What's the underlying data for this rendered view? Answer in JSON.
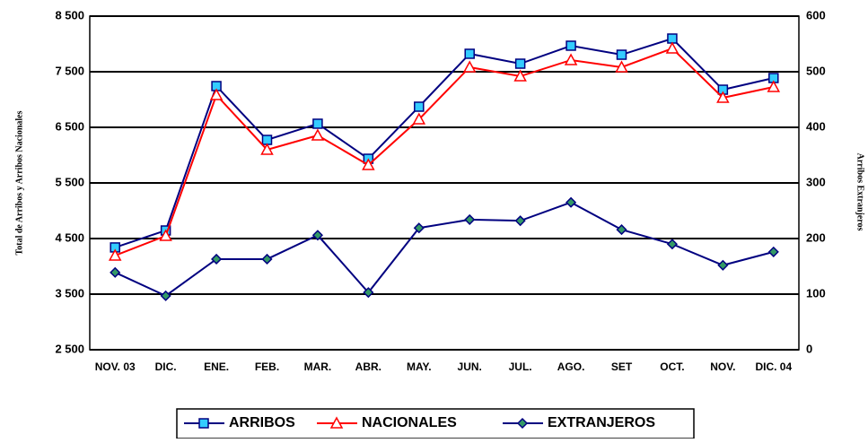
{
  "chart_data": {
    "type": "line",
    "categories": [
      "NOV. 03",
      "DIC.",
      "ENE.",
      "FEB.",
      "MAR.",
      "ABR.",
      "MAY.",
      "JUN.",
      "JUL.",
      "AGO.",
      "SET",
      "OCT.",
      "NOV.",
      "DIC. 04"
    ],
    "ylabel": "Total de Arribos y Arribos Nacionales",
    "y2label": "Arribos Extranjeros",
    "ylim": [
      2500,
      8500
    ],
    "yticks": [
      {
        "value": 2500,
        "label": "2 500"
      },
      {
        "value": 3500,
        "label": "3 500"
      },
      {
        "value": 4500,
        "label": "4 500"
      },
      {
        "value": 5500,
        "label": "5 500"
      },
      {
        "value": 6500,
        "label": "6 500"
      },
      {
        "value": 7500,
        "label": "7 500"
      },
      {
        "value": 8500,
        "label": "8 500"
      }
    ],
    "y2lim": [
      0,
      600
    ],
    "y2ticks": [
      0,
      100,
      200,
      300,
      400,
      500,
      600
    ],
    "grid": true,
    "legend": "bottom",
    "series": [
      {
        "name": "ARRIBOS",
        "color": "#000080",
        "marker": "square",
        "marker_color": "#33ccff",
        "values": [
          4340,
          4645,
          7242,
          6274,
          6565,
          5935,
          6871,
          7823,
          7645,
          7968,
          7806,
          8097,
          7177,
          7387
        ]
      },
      {
        "name": "NACIONALES",
        "color": "#ff0000",
        "marker": "triangle",
        "marker_color": "#ffffff",
        "values": [
          4194,
          4548,
          7081,
          6097,
          6355,
          5823,
          6645,
          7581,
          7419,
          7710,
          7581,
          7919,
          7032,
          7226
        ]
      },
      {
        "name": "EXTRANJEROS",
        "color": "#000080",
        "marker": "diamond",
        "marker_color": "#339966",
        "axis": "y2",
        "values": [
          139,
          97,
          163,
          163,
          206,
          103,
          219,
          234,
          232,
          265,
          216,
          190,
          152,
          176
        ]
      }
    ]
  }
}
